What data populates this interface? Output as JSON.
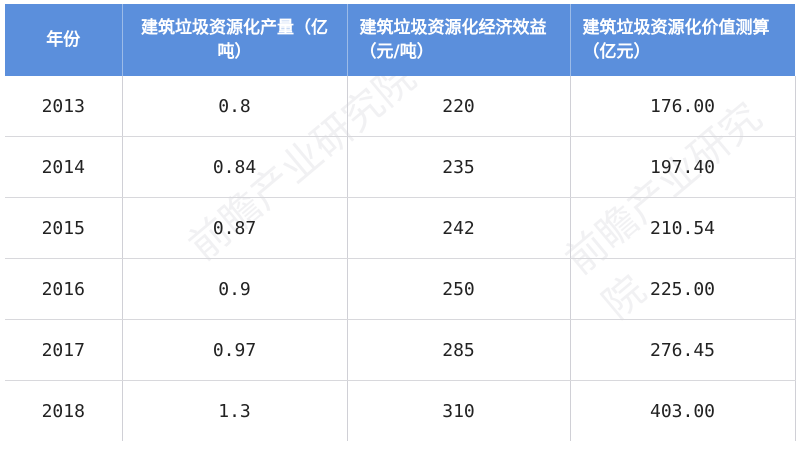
{
  "headers": [
    "年份",
    "建筑垃圾资源化产量（亿吨）",
    "建筑垃圾资源化经济效益（元/吨）",
    "建筑垃圾资源化价值测算（亿元）"
  ],
  "rows": [
    [
      "2013",
      "0.8",
      "220",
      "176.00"
    ],
    [
      "2014",
      "0.84",
      "235",
      "197.40"
    ],
    [
      "2015",
      "0.87",
      "242",
      "210.54"
    ],
    [
      "2016",
      "0.9",
      "250",
      "225.00"
    ],
    [
      "2017",
      "0.97",
      "285",
      "276.45"
    ],
    [
      "2018",
      "1.3",
      "310",
      "403.00"
    ]
  ],
  "watermark": "前瞻产业研究院",
  "colors": {
    "header_bg": "#5b8fdc",
    "header_text": "#ffffff"
  }
}
